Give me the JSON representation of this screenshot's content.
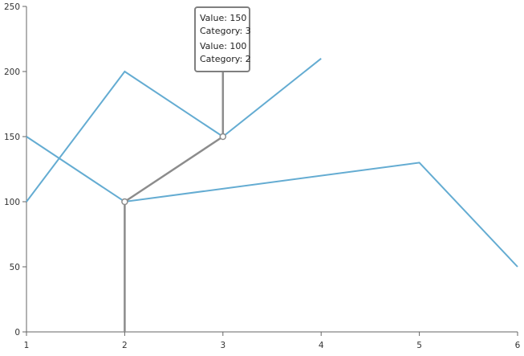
{
  "chart_data": {
    "type": "line",
    "title": "",
    "xlabel": "",
    "ylabel": "",
    "xlim": [
      1,
      6
    ],
    "ylim": [
      0,
      250
    ],
    "x_ticks": [
      "1",
      "2",
      "3",
      "4",
      "5",
      "6"
    ],
    "y_ticks": [
      "0",
      "50",
      "100",
      "150",
      "200",
      "250"
    ],
    "grid": false,
    "series_color": "#64acd2",
    "highlight_color": "#8c8c8c",
    "series": [
      {
        "x": [
          1,
          2,
          3,
          4
        ],
        "values": [
          100,
          200,
          150,
          210
        ]
      },
      {
        "x": [
          1,
          2,
          5,
          6
        ],
        "values": [
          150,
          100,
          130,
          50
        ]
      }
    ],
    "highlighted_points": [
      {
        "x": 2,
        "y": 100
      },
      {
        "x": 3,
        "y": 150
      }
    ],
    "tooltip": {
      "entries": [
        {
          "value_line": "Value: 150",
          "category_line": "Category: 3"
        },
        {
          "value_line": "Value: 100",
          "category_line": "Category: 2"
        }
      ]
    }
  }
}
